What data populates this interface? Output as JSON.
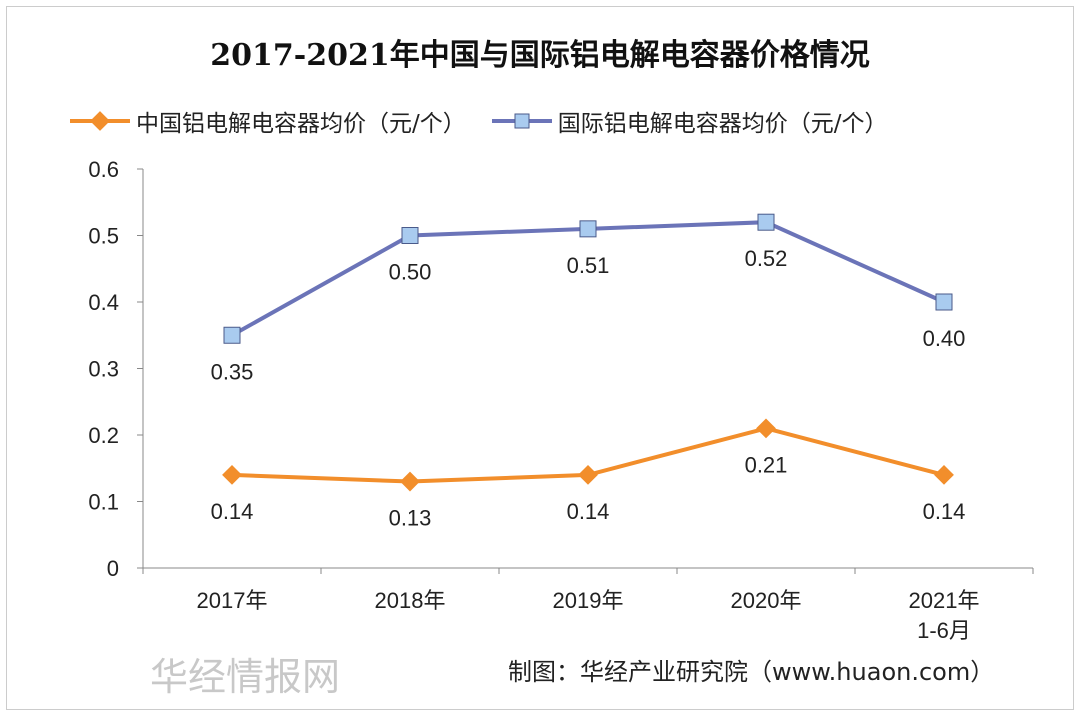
{
  "chart_data": {
    "type": "line",
    "title": "2017-2021年中国与国际铝电解电容器价格情况",
    "categories": [
      "2017年",
      "2018年",
      "2019年",
      "2020年",
      "2021年\n1-6月"
    ],
    "ylim": [
      0,
      0.6
    ],
    "yticks": [
      "0",
      "0.1",
      "0.2",
      "0.3",
      "0.4",
      "0.5",
      "0.6"
    ],
    "grid": false,
    "legend": "top",
    "series": [
      {
        "name": "中国铝电解电容器均价（元/个）",
        "values": [
          0.14,
          0.13,
          0.14,
          0.21,
          0.14
        ],
        "labels": [
          "0.14",
          "0.13",
          "0.14",
          "0.21",
          "0.14"
        ],
        "color": "#F28E2B",
        "marker": "diamond"
      },
      {
        "name": "国际铝电解电容器均价（元/个）",
        "values": [
          0.35,
          0.5,
          0.51,
          0.52,
          0.4
        ],
        "labels": [
          "0.35",
          "0.50",
          "0.51",
          "0.52",
          "0.40"
        ],
        "color": "#6B74B8",
        "marker": "square"
      }
    ]
  },
  "source": "制图：华经产业研究院（www.huaon.com）",
  "watermark": "华经情报网"
}
